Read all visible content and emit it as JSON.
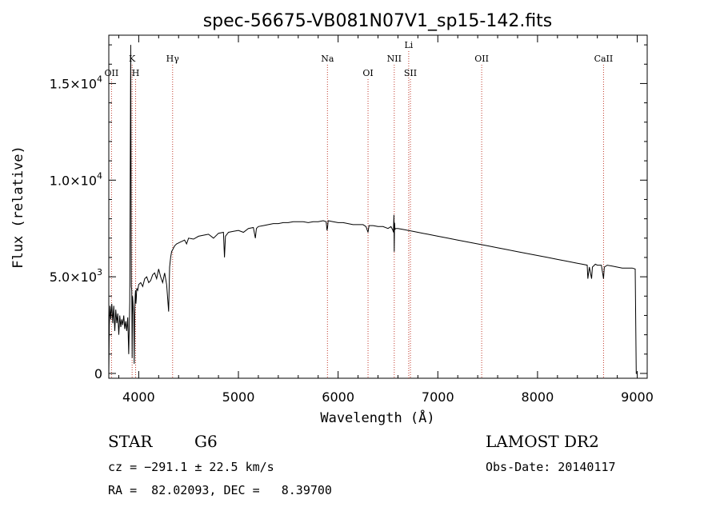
{
  "chart_data": {
    "type": "line",
    "title": "spec-56675-VB081N07V1_sp15-142.fits",
    "xlabel": "Wavelength (Å)",
    "ylabel": "Flux (relative)",
    "xlim": [
      3700,
      9100
    ],
    "ylim": [
      -250,
      17500
    ],
    "x_ticks": [
      4000,
      5000,
      6000,
      7000,
      8000,
      9000
    ],
    "x_tick_labels": [
      "4000",
      "5000",
      "6000",
      "7000",
      "8000",
      "9000"
    ],
    "y_ticks": [
      {
        "value": 0,
        "mantissa": "0",
        "exp": ""
      },
      {
        "value": 5000,
        "mantissa": "5.0×10",
        "exp": "3"
      },
      {
        "value": 10000,
        "mantissa": "1.0×10",
        "exp": "4"
      },
      {
        "value": 15000,
        "mantissa": "1.5×10",
        "exp": "4"
      }
    ],
    "series": [
      {
        "x": [
          3700,
          3705,
          3712,
          3720,
          3730,
          3740,
          3750,
          3760,
          3770,
          3780,
          3790,
          3800,
          3810,
          3820,
          3830,
          3840,
          3850,
          3860,
          3870,
          3880,
          3890,
          3900,
          3910,
          3920,
          3926,
          3930,
          3934,
          3938,
          3942,
          3950,
          3955,
          3960,
          3965,
          3968,
          3972,
          3976,
          3980,
          3990,
          4000,
          4020,
          4040,
          4060,
          4080,
          4100,
          4120,
          4140,
          4160,
          4180,
          4200,
          4220,
          4240,
          4260,
          4280,
          4300,
          4310,
          4320,
          4330,
          4340,
          4350,
          4360,
          4380,
          4400,
          4420,
          4440,
          4460,
          4480,
          4500,
          4550,
          4600,
          4650,
          4700,
          4750,
          4800,
          4850,
          4860,
          4870,
          4900,
          4950,
          5000,
          5050,
          5100,
          5150,
          5170,
          5180,
          5200,
          5250,
          5300,
          5350,
          5400,
          5450,
          5500,
          5550,
          5600,
          5650,
          5700,
          5750,
          5800,
          5850,
          5880,
          5889,
          5895,
          5900,
          5950,
          6000,
          6050,
          6100,
          6150,
          6200,
          6250,
          6280,
          6300,
          6310,
          6350,
          6400,
          6450,
          6500,
          6530,
          6550,
          6555,
          6560,
          6563,
          6566,
          6570,
          6580,
          6600,
          6650,
          6700,
          6750,
          6800,
          6850,
          6900,
          6950,
          7000,
          7100,
          7200,
          7300,
          7400,
          7500,
          7600,
          7700,
          7800,
          7900,
          8000,
          8100,
          8200,
          8300,
          8400,
          8450,
          8498,
          8505,
          8520,
          8542,
          8550,
          8580,
          8600,
          8640,
          8662,
          8670,
          8700,
          8750,
          8800,
          8850,
          8900,
          8950,
          8980,
          8990,
          9000
        ],
        "y": [
          0,
          2500,
          3500,
          2800,
          3600,
          2600,
          3500,
          2200,
          3300,
          2600,
          3100,
          2000,
          3000,
          2400,
          2800,
          2500,
          3000,
          2300,
          2700,
          2200,
          2900,
          1000,
          3700,
          17000,
          4500,
          4300,
          800,
          4000,
          3700,
          3000,
          500,
          3300,
          4000,
          4300,
          3600,
          3900,
          4400,
          4300,
          4600,
          4700,
          4500,
          4900,
          5000,
          4700,
          4800,
          5100,
          5200,
          4900,
          5400,
          5000,
          4700,
          5200,
          4600,
          3200,
          5500,
          6000,
          6300,
          6400,
          6500,
          6600,
          6700,
          6750,
          6800,
          6850,
          6900,
          6700,
          7000,
          6950,
          7100,
          7150,
          7200,
          7000,
          7250,
          7300,
          6000,
          7100,
          7300,
          7350,
          7400,
          7300,
          7500,
          7550,
          7000,
          7500,
          7600,
          7650,
          7700,
          7750,
          7750,
          7800,
          7800,
          7850,
          7850,
          7850,
          7800,
          7850,
          7850,
          7900,
          7850,
          7400,
          7600,
          7900,
          7850,
          7800,
          7800,
          7750,
          7700,
          7700,
          7700,
          7600,
          7300,
          7650,
          7650,
          7600,
          7600,
          7500,
          7600,
          7400,
          7300,
          8200,
          6300,
          7800,
          7450,
          7500,
          7500,
          7450,
          7400,
          7350,
          7300,
          7250,
          7200,
          7150,
          7100,
          7000,
          6900,
          6800,
          6700,
          6600,
          6500,
          6400,
          6300,
          6200,
          6100,
          6000,
          5900,
          5800,
          5700,
          5650,
          5600,
          4900,
          5500,
          4900,
          5500,
          5650,
          5600,
          5600,
          4900,
          5500,
          5600,
          5550,
          5500,
          5450,
          5450,
          5450,
          5400,
          0,
          0
        ]
      }
    ],
    "lines": [
      {
        "x": 3727,
        "label": "OII",
        "row": 2
      },
      {
        "x": 3934,
        "label": "K",
        "row": 1
      },
      {
        "x": 3969,
        "label": "H",
        "row": 2
      },
      {
        "x": 4340,
        "label": "Hγ",
        "row": 1
      },
      {
        "x": 5893,
        "label": "Na",
        "row": 1
      },
      {
        "x": 6300,
        "label": "OI",
        "row": 2
      },
      {
        "x": 6563,
        "label": "NII",
        "row": 1
      },
      {
        "x": 6708,
        "label": "Li",
        "row": 0
      },
      {
        "x": 6725,
        "label": "SII",
        "row": 2
      },
      {
        "x": 7440,
        "label": "OII",
        "row": 1
      },
      {
        "x": 8662,
        "label": "CaII",
        "row": 1
      }
    ]
  },
  "info": {
    "class": "STAR",
    "subclass": "G6",
    "survey": "LAMOST DR2",
    "cz": "cz = −291.1 ± 22.5 km/s",
    "obs_date": "Obs-Date: 20140117",
    "coords": "RA =  82.02093, DEC =   8.39700"
  }
}
